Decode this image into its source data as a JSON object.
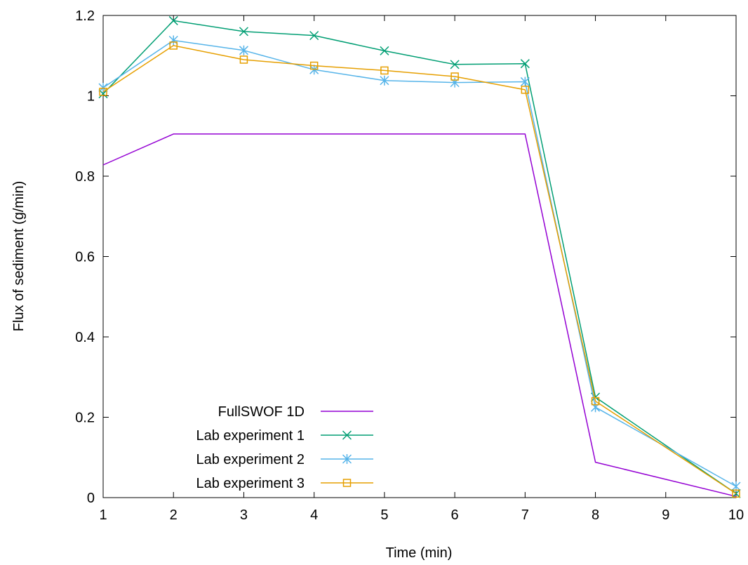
{
  "chart_data": {
    "type": "line",
    "title": "",
    "xlabel": "Time (min)",
    "ylabel": "Flux of sediment (g/min)",
    "xlim": [
      1,
      10
    ],
    "ylim": [
      0,
      1.2
    ],
    "xticks": [
      1,
      2,
      3,
      4,
      5,
      6,
      7,
      8,
      9,
      10
    ],
    "yticks": [
      0,
      0.2,
      0.4,
      0.6,
      0.8,
      1,
      1.2
    ],
    "x_tick_labels": [
      "1",
      "2",
      "3",
      "4",
      "5",
      "6",
      "7",
      "8",
      "9",
      "10"
    ],
    "y_tick_labels": [
      "0",
      "0.2",
      "0.4",
      "0.6",
      "0.8",
      "1",
      "1.2"
    ],
    "grid": false,
    "legend_position": "bottom-left",
    "series": [
      {
        "name": "FullSWOF 1D",
        "color": "#9400d3",
        "marker": "none",
        "x": [
          1,
          2,
          7,
          8,
          10
        ],
        "y": [
          0.828,
          0.905,
          0.905,
          0.088,
          0.003
        ]
      },
      {
        "name": "Lab experiment 1",
        "color": "#009e73",
        "marker": "x",
        "x": [
          1,
          2,
          3,
          4,
          5,
          6,
          7,
          8,
          10
        ],
        "y": [
          1.005,
          1.187,
          1.16,
          1.15,
          1.112,
          1.078,
          1.08,
          0.25,
          0.01
        ]
      },
      {
        "name": "Lab experiment 2",
        "color": "#56b4e9",
        "marker": "asterisk",
        "x": [
          1,
          2,
          3,
          4,
          5,
          6,
          7,
          8,
          10
        ],
        "y": [
          1.02,
          1.138,
          1.113,
          1.065,
          1.038,
          1.033,
          1.035,
          0.225,
          0.028
        ]
      },
      {
        "name": "Lab experiment 3",
        "color": "#e69f00",
        "marker": "square",
        "x": [
          1,
          2,
          3,
          4,
          5,
          6,
          7,
          8,
          10
        ],
        "y": [
          1.01,
          1.125,
          1.09,
          1.075,
          1.063,
          1.048,
          1.015,
          0.24,
          0.01
        ]
      }
    ]
  }
}
